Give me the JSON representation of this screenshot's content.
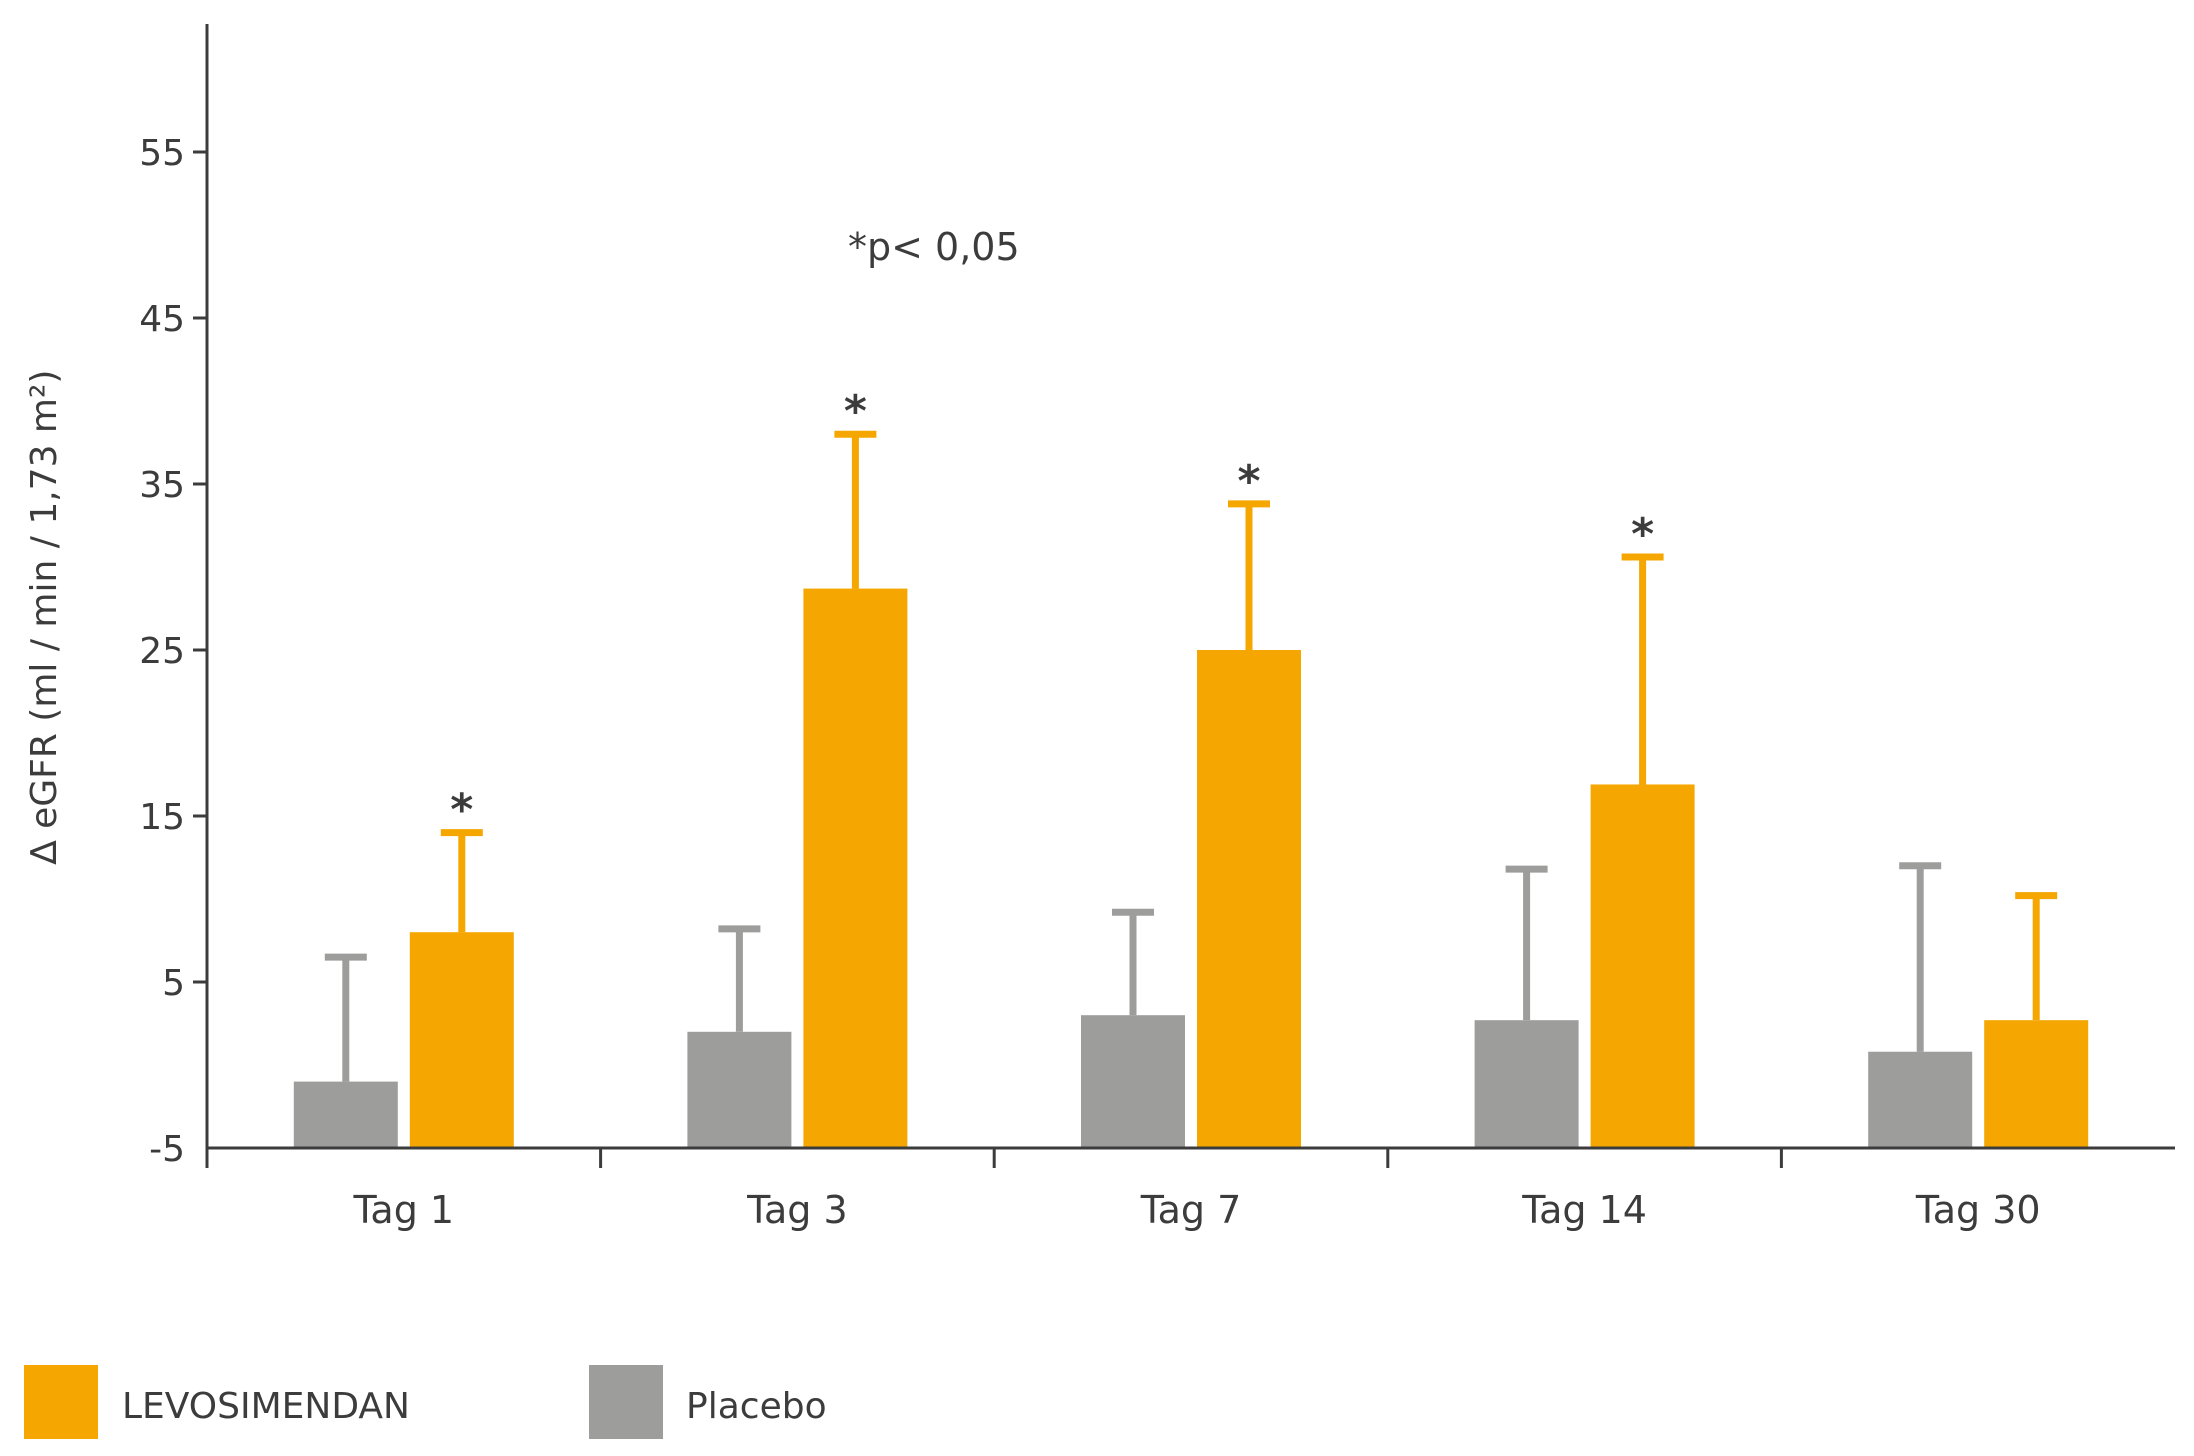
{
  "chart_data": {
    "type": "bar",
    "ylabel": "∆ eGFR  (ml / min / 1,73 m²)",
    "yticks": [
      -5,
      5,
      15,
      25,
      35,
      45,
      55
    ],
    "ylim": [
      -5,
      62
    ],
    "categories": [
      "Tag 1",
      "Tag 3",
      "Tag 7",
      "Tag 14",
      "Tag 30"
    ],
    "series": [
      {
        "name": "Placebo",
        "color": "#9d9d9c",
        "values": [
          -1,
          2,
          3,
          2.7,
          0.8
        ],
        "error_upper": [
          6.5,
          8.2,
          9.2,
          11.8,
          12
        ]
      },
      {
        "name": "LEVOSIMENDAN",
        "color": "#f5a600",
        "values": [
          8,
          28.7,
          25,
          16.9,
          2.7
        ],
        "error_upper": [
          14,
          38,
          33.8,
          30.6,
          10.2
        ]
      }
    ],
    "significance": [
      "*",
      "*",
      "*",
      "*",
      ""
    ],
    "note": "*p< 0,05",
    "legend": {
      "placement": "bottom-left",
      "items": [
        "LEVOSIMENDAN",
        "Placebo"
      ]
    }
  }
}
